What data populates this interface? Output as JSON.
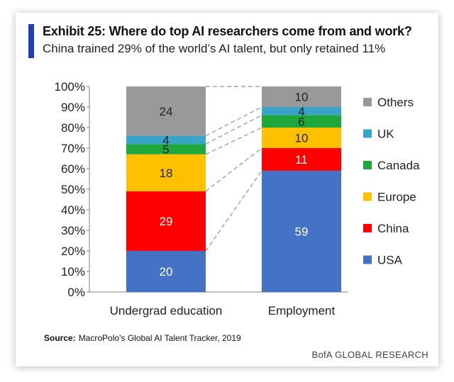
{
  "header": {
    "title": "Exhibit 25: Where do top AI researchers come from and work?",
    "subtitle": "China trained 29% of the world’s AI talent, but only retained 11%"
  },
  "source": {
    "label": "Source:",
    "text": "MacroPolo’s Global AI Talent Tracker, 2019"
  },
  "footer": {
    "brand": "BofA GLOBAL RESEARCH"
  },
  "colors": {
    "USA": "#4472c4",
    "China": "#ff0000",
    "Europe": "#ffc000",
    "Canada": "#1ea83c",
    "UK": "#3aa4c8",
    "Others": "#999999",
    "connector": "#a6a6a6"
  },
  "chart_data": {
    "type": "bar",
    "stacked": true,
    "unit": "%",
    "categories": [
      "Undergrad education",
      "Employment"
    ],
    "series": [
      {
        "name": "USA",
        "values": [
          20,
          59
        ]
      },
      {
        "name": "China",
        "values": [
          29,
          11
        ]
      },
      {
        "name": "Europe",
        "values": [
          18,
          10
        ]
      },
      {
        "name": "Canada",
        "values": [
          5,
          6
        ]
      },
      {
        "name": "UK",
        "values": [
          4,
          4
        ]
      },
      {
        "name": "Others",
        "values": [
          24,
          10
        ]
      }
    ],
    "ylim": [
      0,
      100
    ],
    "yticks": [
      "0%",
      "10%",
      "20%",
      "30%",
      "40%",
      "50%",
      "60%",
      "70%",
      "80%",
      "90%",
      "100%"
    ],
    "legend_order": [
      "Others",
      "UK",
      "Canada",
      "Europe",
      "China",
      "USA"
    ],
    "legend_position": "right",
    "grid": false
  }
}
